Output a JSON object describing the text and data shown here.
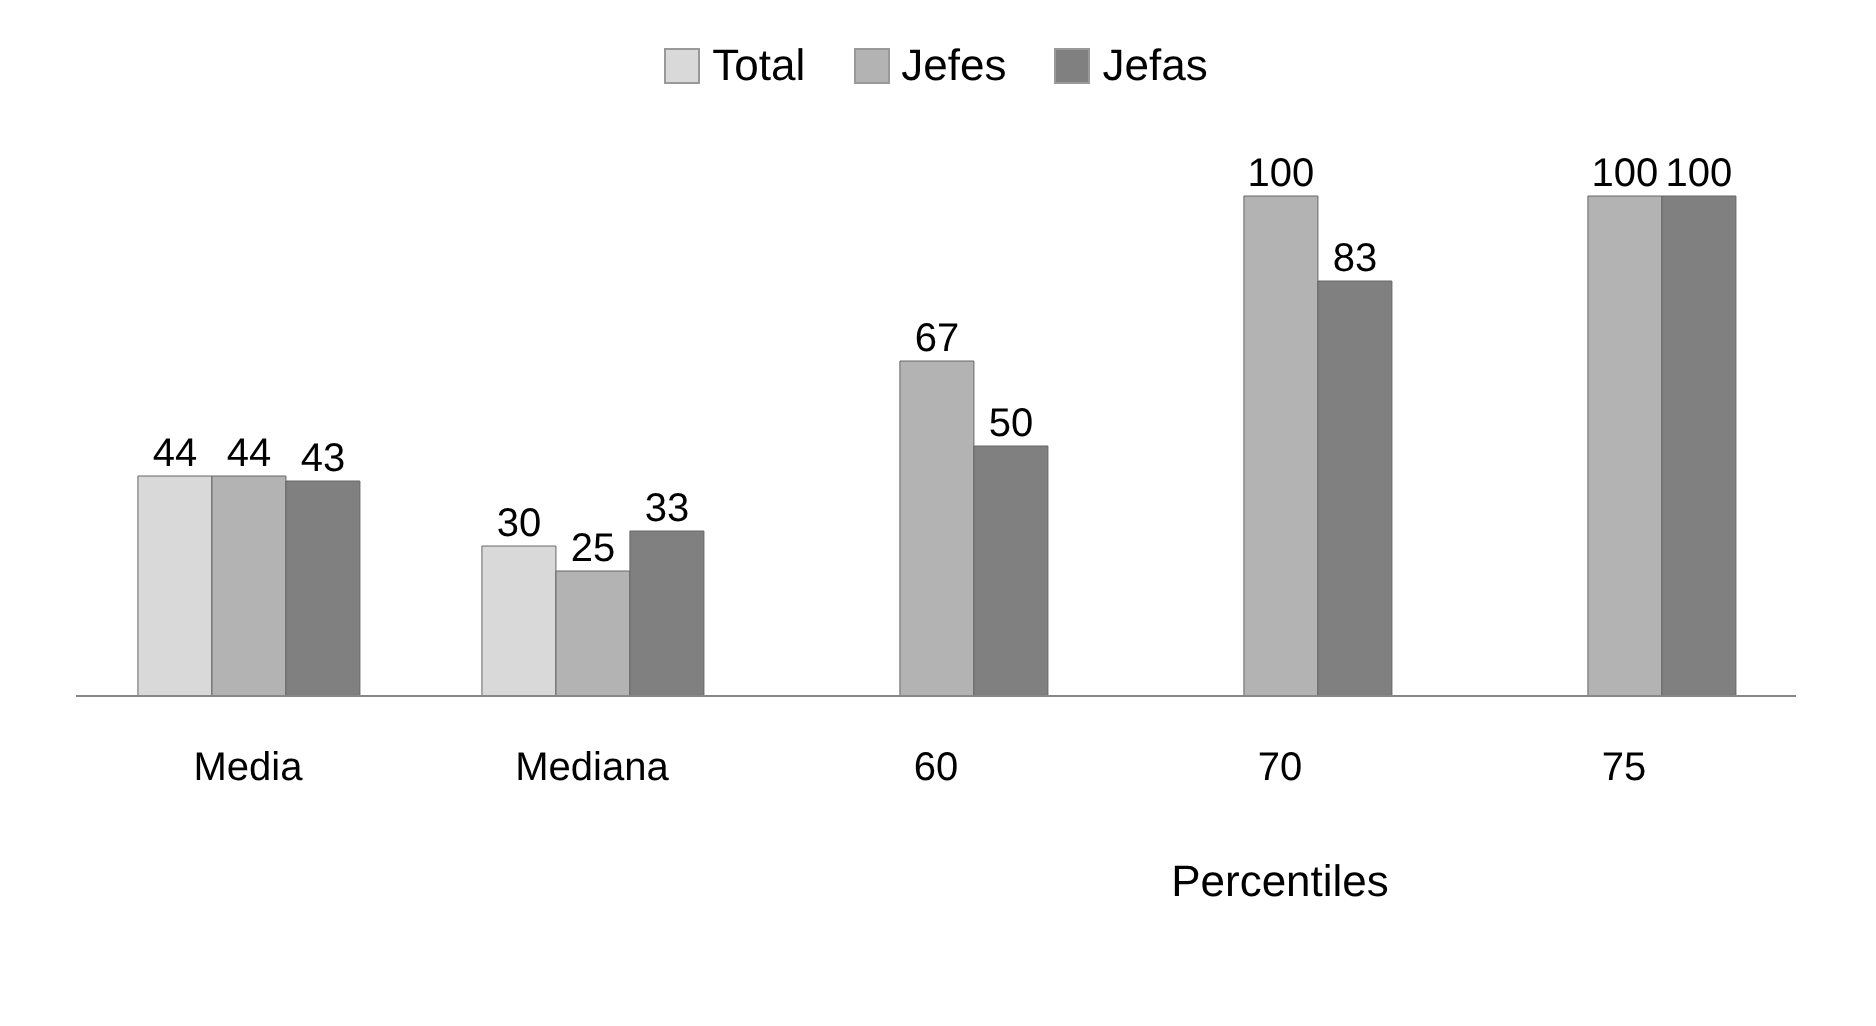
{
  "chart_data": {
    "type": "bar",
    "categories": [
      "Media",
      "Mediana",
      "60",
      "70",
      "75"
    ],
    "series": [
      {
        "name": "Total",
        "color": "#d9d9d9",
        "values": [
          44,
          30,
          null,
          null,
          null
        ]
      },
      {
        "name": "Jefes",
        "color": "#b3b3b3",
        "values": [
          44,
          25,
          67,
          100,
          100
        ]
      },
      {
        "name": "Jefas",
        "color": "#808080",
        "values": [
          43,
          33,
          50,
          83,
          100
        ]
      }
    ],
    "data_labels": true,
    "legend": "top",
    "annotations": [
      "Percentiles"
    ]
  }
}
